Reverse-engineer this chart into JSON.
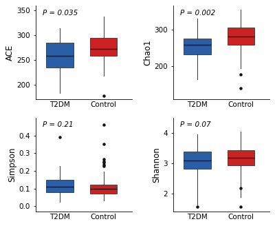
{
  "panels": [
    {
      "label": "ACE",
      "p_value": "P = 0.035",
      "ylim": [
        170,
        360
      ],
      "yticks": [
        200,
        250,
        300,
        350
      ],
      "groups": {
        "T2DM": {
          "color": "#2b5fa5",
          "median": 258,
          "q1": 235,
          "q3": 285,
          "whislo": 183,
          "whishi": 315,
          "fliers": []
        },
        "Control": {
          "color": "#cc2222",
          "median": 272,
          "q1": 258,
          "q3": 295,
          "whislo": 218,
          "whishi": 338,
          "fliers": [
            178
          ]
        }
      }
    },
    {
      "label": "Chao1",
      "p_value": "P = 0.002",
      "ylim": [
        110,
        365
      ],
      "yticks": [
        200,
        300
      ],
      "groups": {
        "T2DM": {
          "color": "#2b5fa5",
          "median": 258,
          "q1": 232,
          "q3": 275,
          "whislo": 165,
          "whishi": 330,
          "fliers": []
        },
        "Control": {
          "color": "#cc2222",
          "median": 282,
          "q1": 258,
          "q3": 305,
          "whislo": 195,
          "whishi": 355,
          "fliers": [
            178,
            140
          ]
        }
      }
    },
    {
      "label": "Simpson",
      "p_value": "P = 0.21",
      "ylim": [
        -0.03,
        0.5
      ],
      "yticks": [
        0.0,
        0.1,
        0.2,
        0.3,
        0.4
      ],
      "groups": {
        "T2DM": {
          "color": "#2b5fa5",
          "median": 0.108,
          "q1": 0.078,
          "q3": 0.148,
          "whislo": 0.025,
          "whishi": 0.225,
          "fliers": [
            0.39
          ]
        },
        "Control": {
          "color": "#cc2222",
          "median": 0.097,
          "q1": 0.072,
          "q3": 0.122,
          "whislo": 0.033,
          "whishi": 0.195,
          "fliers": [
            0.46,
            0.35,
            0.265,
            0.255,
            0.245,
            0.235,
            0.225
          ]
        }
      }
    },
    {
      "label": "Shannon",
      "p_value": "P = 0.07",
      "ylim": [
        1.4,
        4.5
      ],
      "yticks": [
        2,
        3,
        4
      ],
      "groups": {
        "T2DM": {
          "color": "#2b5fa5",
          "median": 3.08,
          "q1": 2.82,
          "q3": 3.38,
          "whislo": 1.62,
          "whishi": 3.95,
          "fliers": [
            1.55
          ]
        },
        "Control": {
          "color": "#cc2222",
          "median": 3.18,
          "q1": 2.92,
          "q3": 3.42,
          "whislo": 1.88,
          "whishi": 4.05,
          "fliers": [
            2.18,
            1.55
          ]
        }
      }
    }
  ],
  "group_names": [
    "T2DM",
    "Control"
  ],
  "background_color": "#ffffff",
  "figsize": [
    4.0,
    3.28
  ],
  "dpi": 100
}
